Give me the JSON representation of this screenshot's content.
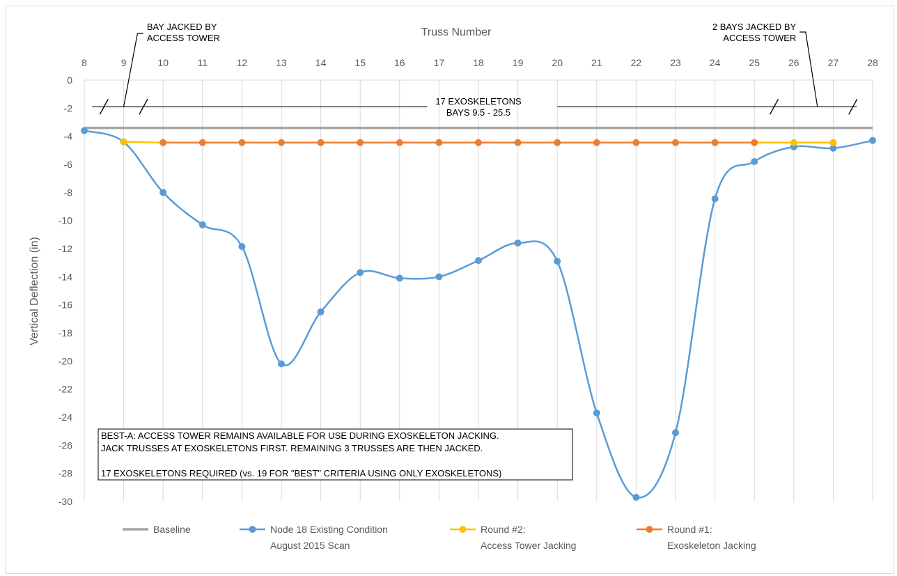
{
  "chart_data": {
    "type": "line",
    "title": "",
    "xlabel": "Truss Number",
    "ylabel": "Vertical Deflection (in)",
    "xlim": [
      8,
      28
    ],
    "ylim": [
      -30,
      0
    ],
    "x_ticks": [
      "8",
      "9",
      "10",
      "11",
      "12",
      "13",
      "14",
      "15",
      "16",
      "17",
      "18",
      "19",
      "20",
      "21",
      "22",
      "23",
      "24",
      "25",
      "26",
      "27",
      "28"
    ],
    "y_ticks": [
      "0",
      "-2",
      "-4",
      "-6",
      "-8",
      "-10",
      "-12",
      "-14",
      "-16",
      "-18",
      "-20",
      "-22",
      "-24",
      "-26",
      "-28",
      "-30"
    ],
    "x_axis_position": "top",
    "grid": "vertical",
    "legend_position": "bottom",
    "series": [
      {
        "name": "Baseline",
        "legend_lines": [
          "Baseline"
        ],
        "color": "#a5a5a5",
        "markers": false,
        "x": [
          8,
          28
        ],
        "y": [
          -3.4,
          -3.4
        ]
      },
      {
        "name": "Node 18 Existing Condition August 2015 Scan",
        "legend_lines": [
          "Node 18 Existing Condition",
          "August 2015 Scan"
        ],
        "color": "#5b9bd5",
        "markers": true,
        "x": [
          8,
          9,
          10,
          11,
          12,
          13,
          14,
          15,
          16,
          17,
          18,
          19,
          20,
          21,
          22,
          23,
          24,
          25,
          26,
          27,
          28
        ],
        "y": [
          -3.6,
          -4.4,
          -8.0,
          -10.3,
          -11.85,
          -20.2,
          -16.5,
          -13.7,
          -14.1,
          -14.0,
          -12.85,
          -11.6,
          -12.9,
          -23.7,
          -29.7,
          -25.1,
          -8.45,
          -5.8,
          -4.75,
          -4.85,
          -4.3
        ]
      },
      {
        "name": "Round #2: Access Tower Jacking",
        "legend_lines": [
          "Round #2:",
          "Access Tower Jacking"
        ],
        "color": "#ffc000",
        "markers": true,
        "x": [
          9,
          10,
          25,
          26,
          27
        ],
        "y": [
          -4.4,
          -4.45,
          -4.45,
          -4.45,
          -4.45
        ]
      },
      {
        "name": "Round #1: Exoskeleton Jacking",
        "legend_lines": [
          "Round #1:",
          "Exoskeleton Jacking"
        ],
        "color": "#ed7d31",
        "markers": true,
        "x": [
          10,
          11,
          12,
          13,
          14,
          15,
          16,
          17,
          18,
          19,
          20,
          21,
          22,
          23,
          24,
          25
        ],
        "y": [
          -4.45,
          -4.45,
          -4.45,
          -4.45,
          -4.45,
          -4.45,
          -4.45,
          -4.45,
          -4.45,
          -4.45,
          -4.45,
          -4.45,
          -4.45,
          -4.45,
          -4.45,
          -4.45
        ]
      }
    ],
    "annotations": {
      "left_callout": [
        "BAY JACKED BY",
        "ACCESS TOWER"
      ],
      "right_callout": [
        "2 BAYS JACKED BY",
        "ACCESS TOWER"
      ],
      "center_span": [
        "17 EXOSKELETONS",
        "BAYS 9.5 - 25.5"
      ],
      "span_y": -1.9,
      "span_marks_x": [
        8.5,
        9.5,
        25.5,
        27.5
      ],
      "note_lines": [
        "BEST-A: ACCESS TOWER REMAINS AVAILABLE FOR USE DURING EXOSKELETON JACKING.",
        "JACK TRUSSES AT EXOSKELETONS FIRST. REMAINING 3 TRUSSES ARE THEN JACKED.",
        "",
        "17 EXOSKELETONS REQUIRED (vs. 19 FOR \"BEST\" CRITERIA USING ONLY EXOSKELETONS)"
      ]
    }
  }
}
